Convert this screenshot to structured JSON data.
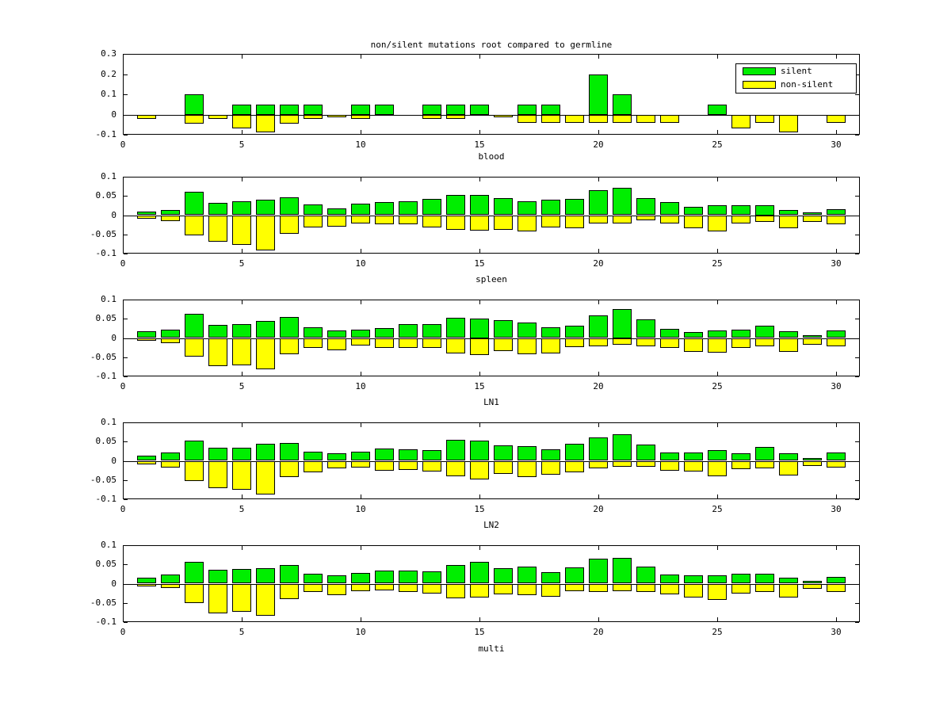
{
  "figure": {
    "background": "#ffffff",
    "axis_color": "#000000"
  },
  "chart_data": [
    {
      "type": "bar",
      "title": "non/silent mutations root compared to germline",
      "xlabel": "blood",
      "x": [
        1,
        2,
        3,
        4,
        5,
        6,
        7,
        8,
        9,
        10,
        11,
        12,
        13,
        14,
        15,
        16,
        17,
        18,
        19,
        20,
        21,
        22,
        23,
        24,
        25,
        26,
        27,
        28,
        29,
        30
      ],
      "xticks": [
        0,
        5,
        10,
        15,
        20,
        25,
        30
      ],
      "yticks": [
        -0.1,
        0,
        0.1,
        0.2,
        0.3
      ],
      "ylim": [
        -0.1,
        0.3
      ],
      "xlim": [
        0,
        31
      ],
      "grid": false,
      "legend": {
        "position": "upper-right",
        "items": [
          {
            "label": "silent",
            "color": "#00ee00"
          },
          {
            "label": "non-silent",
            "color": "#ffff00"
          }
        ]
      },
      "series": [
        {
          "name": "silent",
          "color": "#00ee00",
          "values": [
            0,
            0,
            0.1,
            0,
            0.05,
            0.05,
            0.05,
            0.05,
            0,
            0.05,
            0.05,
            0,
            0.05,
            0.05,
            0.05,
            0,
            0.05,
            0.05,
            0,
            0.2,
            0.1,
            0,
            0,
            0,
            0.05,
            0,
            0,
            0,
            0,
            0
          ]
        },
        {
          "name": "non-silent",
          "color": "#ffff00",
          "values": [
            -0.02,
            0,
            -0.045,
            -0.02,
            -0.068,
            -0.09,
            -0.045,
            -0.02,
            -0.015,
            -0.02,
            0,
            0,
            -0.02,
            -0.02,
            0,
            -0.012,
            -0.04,
            -0.04,
            -0.04,
            -0.04,
            -0.04,
            -0.04,
            -0.04,
            0,
            0,
            -0.068,
            -0.04,
            -0.09,
            0,
            -0.04
          ]
        }
      ]
    },
    {
      "type": "bar",
      "xlabel": "spleen",
      "x": [
        1,
        2,
        3,
        4,
        5,
        6,
        7,
        8,
        9,
        10,
        11,
        12,
        13,
        14,
        15,
        16,
        17,
        18,
        19,
        20,
        21,
        22,
        23,
        24,
        25,
        26,
        27,
        28,
        29,
        30
      ],
      "xticks": [
        0,
        5,
        10,
        15,
        20,
        25,
        30
      ],
      "yticks": [
        -0.1,
        -0.05,
        0,
        0.05,
        0.1
      ],
      "ylim": [
        -0.1,
        0.1
      ],
      "xlim": [
        0,
        31
      ],
      "grid": false,
      "series": [
        {
          "name": "silent",
          "color": "#00ee00",
          "values": [
            0.01,
            0.013,
            0.06,
            0.031,
            0.036,
            0.041,
            0.046,
            0.027,
            0.018,
            0.029,
            0.033,
            0.037,
            0.042,
            0.052,
            0.053,
            0.045,
            0.037,
            0.04,
            0.042,
            0.064,
            0.071,
            0.045,
            0.035,
            0.022,
            0.026,
            0.026,
            0.025,
            0.014,
            0.008,
            0.016
          ]
        },
        {
          "name": "non-silent",
          "color": "#ffff00",
          "values": [
            -0.01,
            -0.016,
            -0.053,
            -0.07,
            -0.077,
            -0.091,
            -0.049,
            -0.032,
            -0.03,
            -0.021,
            -0.023,
            -0.023,
            -0.031,
            -0.038,
            -0.04,
            -0.038,
            -0.043,
            -0.031,
            -0.033,
            -0.021,
            -0.022,
            -0.014,
            -0.021,
            -0.033,
            -0.043,
            -0.021,
            -0.017,
            -0.033,
            -0.017,
            -0.024
          ]
        }
      ]
    },
    {
      "type": "bar",
      "xlabel": "LN1",
      "x": [
        1,
        2,
        3,
        4,
        5,
        6,
        7,
        8,
        9,
        10,
        11,
        12,
        13,
        14,
        15,
        16,
        17,
        18,
        19,
        20,
        21,
        22,
        23,
        24,
        25,
        26,
        27,
        28,
        29,
        30
      ],
      "xticks": [
        0,
        5,
        10,
        15,
        20,
        25,
        30
      ],
      "yticks": [
        -0.1,
        -0.05,
        0,
        0.05,
        0.1
      ],
      "ylim": [
        -0.1,
        0.1
      ],
      "xlim": [
        0,
        31
      ],
      "grid": false,
      "series": [
        {
          "name": "silent",
          "color": "#00ee00",
          "values": [
            0.018,
            0.021,
            0.062,
            0.034,
            0.036,
            0.044,
            0.054,
            0.028,
            0.02,
            0.022,
            0.026,
            0.036,
            0.036,
            0.052,
            0.05,
            0.046,
            0.04,
            0.028,
            0.032,
            0.059,
            0.075,
            0.049,
            0.024,
            0.016,
            0.019,
            0.021,
            0.031,
            0.017,
            0.008,
            0.019
          ]
        },
        {
          "name": "non-silent",
          "color": "#ffff00",
          "values": [
            -0.008,
            -0.014,
            -0.048,
            -0.074,
            -0.072,
            -0.082,
            -0.042,
            -0.026,
            -0.032,
            -0.02,
            -0.026,
            -0.026,
            -0.026,
            -0.04,
            -0.044,
            -0.034,
            -0.042,
            -0.04,
            -0.024,
            -0.022,
            -0.017,
            -0.021,
            -0.026,
            -0.037,
            -0.038,
            -0.026,
            -0.022,
            -0.037,
            -0.017,
            -0.021
          ]
        }
      ]
    },
    {
      "type": "bar",
      "xlabel": "LN2",
      "x": [
        1,
        2,
        3,
        4,
        5,
        6,
        7,
        8,
        9,
        10,
        11,
        12,
        13,
        14,
        15,
        16,
        17,
        18,
        19,
        20,
        21,
        22,
        23,
        24,
        25,
        26,
        27,
        28,
        29,
        30
      ],
      "xticks": [
        0,
        5,
        10,
        15,
        20,
        25,
        30
      ],
      "yticks": [
        -0.1,
        -0.05,
        0,
        0.05,
        0.1
      ],
      "ylim": [
        -0.1,
        0.1
      ],
      "xlim": [
        0,
        31
      ],
      "grid": false,
      "series": [
        {
          "name": "silent",
          "color": "#00ee00",
          "values": [
            0.014,
            0.022,
            0.052,
            0.035,
            0.034,
            0.045,
            0.047,
            0.024,
            0.02,
            0.024,
            0.032,
            0.03,
            0.028,
            0.054,
            0.052,
            0.04,
            0.038,
            0.03,
            0.044,
            0.06,
            0.07,
            0.042,
            0.022,
            0.022,
            0.028,
            0.02,
            0.036,
            0.02,
            0.008,
            0.022
          ]
        },
        {
          "name": "non-silent",
          "color": "#ffff00",
          "values": [
            -0.01,
            -0.017,
            -0.052,
            -0.072,
            -0.076,
            -0.088,
            -0.042,
            -0.029,
            -0.02,
            -0.017,
            -0.025,
            -0.024,
            -0.028,
            -0.04,
            -0.048,
            -0.034,
            -0.042,
            -0.036,
            -0.03,
            -0.02,
            -0.015,
            -0.016,
            -0.026,
            -0.028,
            -0.04,
            -0.022,
            -0.02,
            -0.038,
            -0.014,
            -0.017
          ]
        }
      ]
    },
    {
      "type": "bar",
      "xlabel": "multi",
      "x": [
        1,
        2,
        3,
        4,
        5,
        6,
        7,
        8,
        9,
        10,
        11,
        12,
        13,
        14,
        15,
        16,
        17,
        18,
        19,
        20,
        21,
        22,
        23,
        24,
        25,
        26,
        27,
        28,
        29,
        30
      ],
      "xticks": [
        0,
        5,
        10,
        15,
        20,
        25,
        30
      ],
      "yticks": [
        -0.1,
        -0.05,
        0,
        0.05,
        0.1
      ],
      "ylim": [
        -0.1,
        0.1
      ],
      "xlim": [
        0,
        31
      ],
      "grid": false,
      "series": [
        {
          "name": "silent",
          "color": "#00ee00",
          "values": [
            0.016,
            0.024,
            0.056,
            0.037,
            0.039,
            0.041,
            0.049,
            0.026,
            0.021,
            0.028,
            0.034,
            0.034,
            0.031,
            0.049,
            0.056,
            0.04,
            0.044,
            0.029,
            0.042,
            0.064,
            0.068,
            0.045,
            0.024,
            0.022,
            0.021,
            0.026,
            0.026,
            0.015,
            0.007,
            0.018
          ]
        },
        {
          "name": "non-silent",
          "color": "#ffff00",
          "values": [
            -0.008,
            -0.012,
            -0.05,
            -0.077,
            -0.074,
            -0.083,
            -0.04,
            -0.022,
            -0.03,
            -0.02,
            -0.018,
            -0.022,
            -0.026,
            -0.038,
            -0.036,
            -0.028,
            -0.03,
            -0.034,
            -0.02,
            -0.021,
            -0.019,
            -0.021,
            -0.028,
            -0.037,
            -0.043,
            -0.026,
            -0.022,
            -0.037,
            -0.014,
            -0.021
          ]
        }
      ]
    }
  ]
}
